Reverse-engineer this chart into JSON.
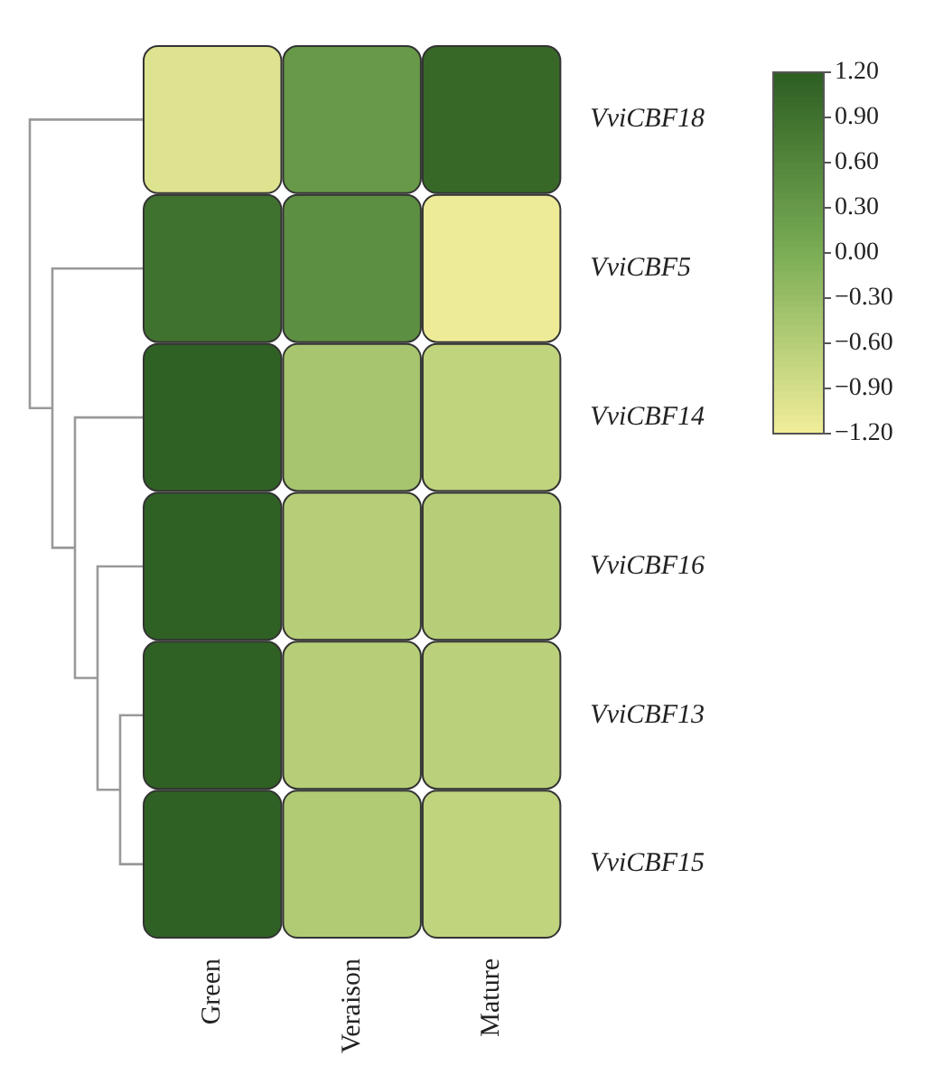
{
  "chart_data": {
    "type": "heatmap",
    "categories": [
      "Green",
      "Veraison",
      "Mature"
    ],
    "y_categories": [
      "VviCBF18",
      "VviCBF5",
      "VviCBF14",
      "VviCBF16",
      "VviCBF13",
      "VviCBF15"
    ],
    "cells": [
      [
        -1.0,
        0.3,
        1.05
      ],
      [
        0.9,
        0.45,
        -1.15
      ],
      [
        1.15,
        -0.45,
        -0.7
      ],
      [
        1.15,
        -0.6,
        -0.6
      ],
      [
        1.15,
        -0.6,
        -0.65
      ],
      [
        1.15,
        -0.55,
        -0.7
      ]
    ],
    "clim": [
      -1.2,
      1.2
    ],
    "cticks": [
      {
        "value": 1.2,
        "label": "1.20"
      },
      {
        "value": 0.9,
        "label": "0.90"
      },
      {
        "value": 0.6,
        "label": "0.60"
      },
      {
        "value": 0.3,
        "label": "0.30"
      },
      {
        "value": 0,
        "label": "0.00"
      },
      {
        "value": -0.3,
        "label": "−0.30"
      },
      {
        "value": -0.6,
        "label": "−0.60"
      },
      {
        "value": -0.9,
        "label": "−0.90"
      },
      {
        "value": -1.2,
        "label": "−1.20"
      }
    ]
  }
}
